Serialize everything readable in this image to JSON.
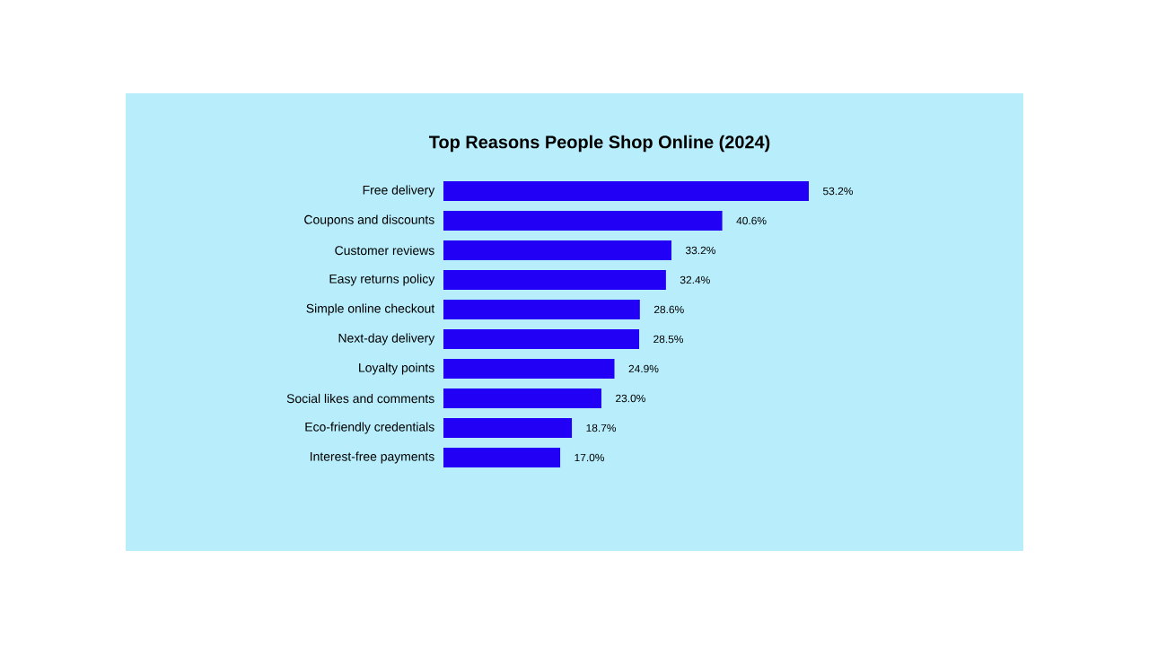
{
  "chart_data": {
    "type": "bar",
    "orientation": "horizontal",
    "title": "Top Reasons People Shop Online (2024)",
    "categories": [
      "Free delivery",
      "Coupons and discounts",
      "Customer reviews",
      "Easy returns policy",
      "Simple online checkout",
      "Next-day delivery",
      "Loyalty points",
      "Social likes and comments",
      "Eco-friendly credentials",
      "Interest-free payments"
    ],
    "values": [
      53.2,
      40.6,
      33.2,
      32.4,
      28.6,
      28.5,
      24.9,
      23.0,
      18.7,
      17.0
    ],
    "value_labels": [
      "53.2%",
      "40.6%",
      "33.2%",
      "32.4%",
      "28.6%",
      "28.5%",
      "24.9%",
      "23.0%",
      "18.7%",
      "17.0%"
    ],
    "color": "#2200f5"
  }
}
